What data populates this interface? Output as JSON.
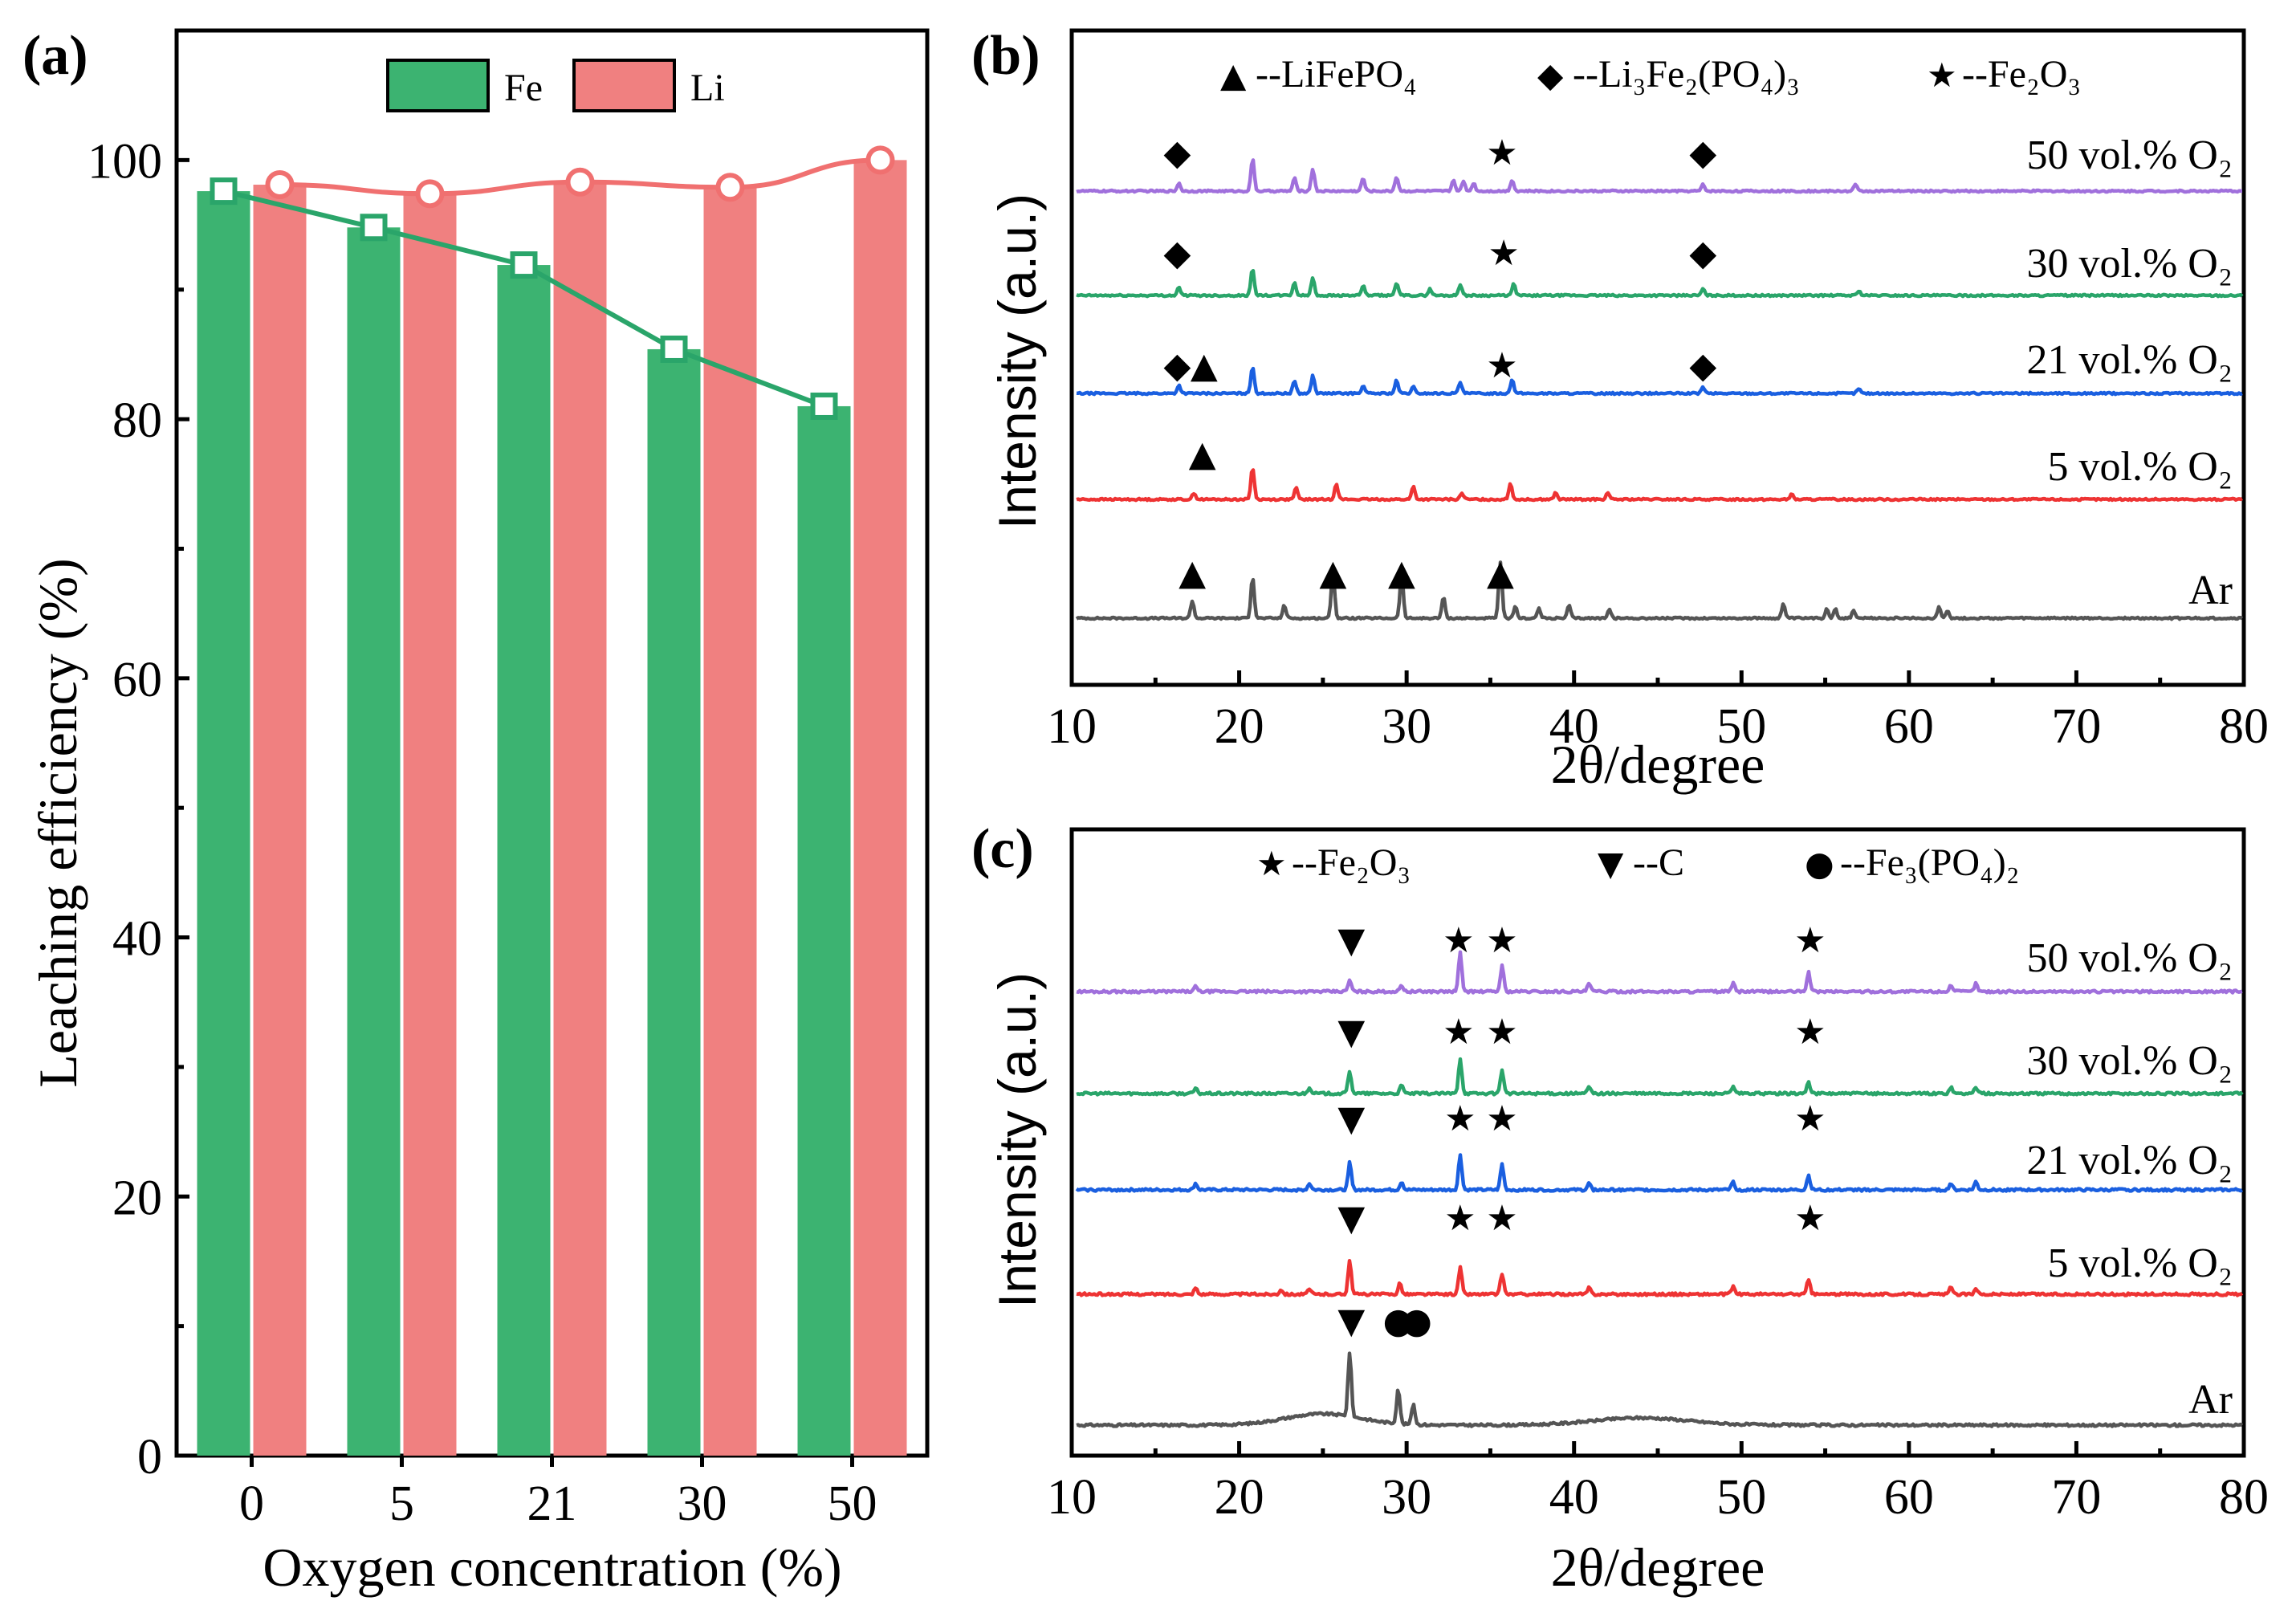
{
  "chart_data": [
    {
      "panel": "(a)",
      "type": "bar",
      "xlabel": "Oxygen concentration (%)",
      "ylabel": "Leaching efficiency (%)",
      "categories": [
        "0",
        "5",
        "21",
        "30",
        "50"
      ],
      "ylim": [
        0,
        110
      ],
      "yticks": [
        "0",
        "20",
        "40",
        "60",
        "80",
        "100"
      ],
      "series": [
        {
          "name": "Fe",
          "color": "#3cb371",
          "values": [
            97.6,
            94.8,
            91.9,
            85.4,
            81.0
          ]
        },
        {
          "name": "Li",
          "color": "#f08080",
          "values": [
            98.1,
            97.4,
            98.3,
            97.9,
            100.0
          ]
        }
      ]
    },
    {
      "panel": "(b)",
      "type": "line",
      "xlabel": "2θ/degree",
      "ylabel": "Intensity (a.u.)",
      "xlim": [
        10,
        80
      ],
      "xticks": [
        "10",
        "20",
        "30",
        "40",
        "50",
        "60",
        "70",
        "80"
      ],
      "legend": [
        {
          "marker": "▲",
          "text": "--LiFePO₄"
        },
        {
          "marker": "◆",
          "text": "--Li₃Fe₂(PO₄)₃"
        },
        {
          "marker": "★",
          "text": "--Fe₂O₃"
        }
      ],
      "curves": [
        {
          "label": "Ar",
          "color": "#555555",
          "peaks": [
            [
              17.2,
              22
            ],
            [
              20.8,
              52
            ],
            [
              22.7,
              16
            ],
            [
              25.6,
              60
            ],
            [
              29.7,
              56
            ],
            [
              32.2,
              26
            ],
            [
              35.6,
              70
            ],
            [
              36.5,
              14
            ],
            [
              37.9,
              12
            ],
            [
              39.7,
              16
            ],
            [
              42.1,
              12
            ],
            [
              52.5,
              18
            ],
            [
              55.1,
              12
            ],
            [
              55.6,
              12
            ],
            [
              56.7,
              10
            ],
            [
              61.8,
              14
            ],
            [
              62.3,
              10
            ]
          ],
          "markers": [
            [
              "▲",
              17.2
            ],
            [
              "▲",
              25.6
            ],
            [
              "▲",
              29.7
            ],
            [
              "▲",
              35.6
            ]
          ]
        },
        {
          "label": "5 vol.% O₂",
          "color": "#ee3333",
          "peaks": [
            [
              17.3,
              8
            ],
            [
              20.8,
              40
            ],
            [
              23.4,
              14
            ],
            [
              25.8,
              20
            ],
            [
              30.4,
              16
            ],
            [
              33.3,
              8
            ],
            [
              36.2,
              20
            ],
            [
              38.9,
              8
            ],
            [
              42.0,
              8
            ],
            [
              53.0,
              6
            ]
          ],
          "markers": [
            [
              "▲",
              17.8
            ]
          ]
        },
        {
          "label": "21 vol.% O₂",
          "color": "#1a5fe0",
          "peaks": [
            [
              16.4,
              10
            ],
            [
              20.8,
              34
            ],
            [
              23.3,
              16
            ],
            [
              24.4,
              22
            ],
            [
              27.4,
              10
            ],
            [
              29.4,
              16
            ],
            [
              30.4,
              8
            ],
            [
              33.2,
              14
            ],
            [
              36.3,
              18
            ],
            [
              47.7,
              8
            ],
            [
              57.0,
              6
            ]
          ],
          "markers": [
            [
              "◆",
              16.3
            ],
            [
              "▲",
              17.9
            ],
            [
              "★",
              35.7
            ],
            [
              "◆",
              47.7
            ]
          ]
        },
        {
          "label": "30 vol.% O₂",
          "color": "#2aa56a",
          "peaks": [
            [
              16.4,
              10
            ],
            [
              20.8,
              34
            ],
            [
              23.3,
              16
            ],
            [
              24.4,
              22
            ],
            [
              27.4,
              12
            ],
            [
              29.4,
              16
            ],
            [
              31.4,
              8
            ],
            [
              33.2,
              14
            ],
            [
              36.4,
              14
            ],
            [
              47.7,
              8
            ],
            [
              57.0,
              6
            ]
          ],
          "markers": [
            [
              "◆",
              16.3
            ],
            [
              "★",
              35.8
            ],
            [
              "◆",
              47.7
            ]
          ]
        },
        {
          "label": "50 vol.% O₂",
          "color": "#a070dc",
          "peaks": [
            [
              16.4,
              10
            ],
            [
              20.8,
              40
            ],
            [
              23.3,
              16
            ],
            [
              24.4,
              28
            ],
            [
              27.4,
              16
            ],
            [
              29.4,
              18
            ],
            [
              32.8,
              14
            ],
            [
              33.4,
              12
            ],
            [
              34.0,
              10
            ],
            [
              36.3,
              14
            ],
            [
              47.7,
              8
            ],
            [
              56.8,
              8
            ]
          ],
          "markers": [
            [
              "◆",
              16.3
            ],
            [
              "★",
              35.7
            ],
            [
              "◆",
              47.7
            ]
          ]
        }
      ]
    },
    {
      "panel": "(c)",
      "type": "line",
      "xlabel": "2θ/degree",
      "ylabel": "Intensity (a.u.)",
      "xlim": [
        10,
        80
      ],
      "xticks": [
        "10",
        "20",
        "30",
        "40",
        "50",
        "60",
        "70",
        "80"
      ],
      "legend": [
        {
          "marker": "★",
          "text": "--Fe₂O₃"
        },
        {
          "marker": "▼",
          "text": "--C"
        },
        {
          "marker": "●",
          "text": "--Fe₃(PO₄)₂"
        }
      ],
      "curves": [
        {
          "label": "Ar",
          "color": "#555555",
          "peaks": [
            [
              26.6,
              80
            ],
            [
              29.5,
              44
            ],
            [
              30.4,
              26
            ]
          ],
          "markers": [
            [
              "▼",
              26.7
            ],
            [
              "●",
              29.5
            ],
            [
              "●",
              30.6
            ]
          ]
        },
        {
          "label": "5 vol.% O₂",
          "color": "#ee3333",
          "peaks": [
            [
              17.4,
              8
            ],
            [
              22.5,
              6
            ],
            [
              24.2,
              6
            ],
            [
              26.6,
              42
            ],
            [
              29.6,
              14
            ],
            [
              33.2,
              34
            ],
            [
              35.7,
              26
            ],
            [
              40.9,
              8
            ],
            [
              49.5,
              10
            ],
            [
              54.0,
              18
            ],
            [
              62.5,
              8
            ],
            [
              64.0,
              8
            ]
          ],
          "markers": [
            [
              "▼",
              26.7
            ],
            [
              "★",
              33.2
            ],
            [
              "★",
              35.7
            ],
            [
              "★",
              54.1
            ]
          ]
        },
        {
          "label": "21 vol.% O₂",
          "color": "#1a5fe0",
          "peaks": [
            [
              17.4,
              8
            ],
            [
              24.2,
              8
            ],
            [
              26.6,
              34
            ],
            [
              29.7,
              10
            ],
            [
              33.2,
              44
            ],
            [
              35.7,
              32
            ],
            [
              40.9,
              8
            ],
            [
              49.5,
              10
            ],
            [
              54.0,
              18
            ],
            [
              62.5,
              8
            ],
            [
              64.0,
              10
            ]
          ],
          "markers": [
            [
              "▼",
              26.7
            ],
            [
              "★",
              33.2
            ],
            [
              "★",
              35.7
            ],
            [
              "★",
              54.1
            ]
          ]
        },
        {
          "label": "30 vol.% O₂",
          "color": "#2aa56a",
          "peaks": [
            [
              17.4,
              6
            ],
            [
              24.2,
              8
            ],
            [
              26.6,
              28
            ],
            [
              29.7,
              10
            ],
            [
              33.2,
              44
            ],
            [
              35.7,
              30
            ],
            [
              40.9,
              8
            ],
            [
              49.5,
              8
            ],
            [
              54.0,
              14
            ],
            [
              62.5,
              8
            ],
            [
              64.0,
              8
            ]
          ],
          "markers": [
            [
              "▼",
              26.7
            ],
            [
              "★",
              33.1
            ],
            [
              "★",
              35.7
            ],
            [
              "★",
              54.1
            ]
          ]
        },
        {
          "label": "50 vol.% O₂",
          "color": "#a070dc",
          "peaks": [
            [
              17.4,
              6
            ],
            [
              26.6,
              14
            ],
            [
              29.7,
              8
            ],
            [
              33.2,
              48
            ],
            [
              35.7,
              32
            ],
            [
              40.9,
              10
            ],
            [
              49.5,
              10
            ],
            [
              54.0,
              24
            ],
            [
              62.5,
              8
            ],
            [
              64.0,
              10
            ]
          ],
          "markers": [
            [
              "▼",
              26.7
            ],
            [
              "★",
              33.1
            ],
            [
              "★",
              35.7
            ],
            [
              "★",
              54.1
            ]
          ]
        }
      ]
    }
  ]
}
